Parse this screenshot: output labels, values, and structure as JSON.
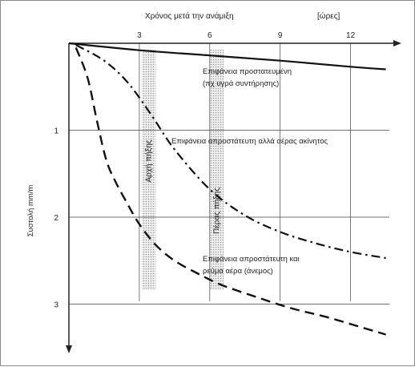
{
  "chart_data": {
    "type": "line",
    "xlabel": "Χρόνος μετά την ανάμιξη",
    "xunit": "[ώρες]",
    "ylabel": "Συστολή mm/m",
    "x_ticks": [
      "3",
      "6",
      "9",
      "12"
    ],
    "y_ticks": [
      "1",
      "2",
      "3"
    ],
    "xlim": [
      0,
      13.5
    ],
    "ylim": [
      0,
      3.5
    ],
    "y_inverted": true,
    "x_axis_position": "top",
    "grid": true,
    "bands": [
      {
        "name": "Αρχή πήξης",
        "x_start": 3.1,
        "x_end": 3.7
      },
      {
        "name": "Πέρας πήξης",
        "x_start": 6.0,
        "x_end": 6.6
      }
    ],
    "series": [
      {
        "name": "Επιφάνεια προστατευμένη (πχ υγρά συντήρησης)",
        "style": "solid",
        "x": [
          0,
          3,
          6,
          9,
          12,
          13.5
        ],
        "y": [
          0,
          0.08,
          0.14,
          0.2,
          0.27,
          0.3
        ]
      },
      {
        "name": "Επιφάνεια απροστάτευτη αλλά αέρας ακίνητος",
        "style": "dash-dot",
        "x": [
          0.3,
          1.5,
          2.5,
          3.5,
          4.5,
          6,
          7.5,
          9,
          10.5,
          12,
          13.5
        ],
        "y": [
          0.02,
          0.2,
          0.45,
          0.82,
          1.22,
          1.68,
          1.98,
          2.17,
          2.3,
          2.4,
          2.47
        ]
      },
      {
        "name": "Επιφάνεια απροστάτευτη και ρεύμα αέρα (άνεμος)",
        "style": "dashed",
        "x": [
          0.3,
          0.8,
          1.2,
          1.6,
          2,
          2.5,
          3,
          3.7,
          4.5,
          5.5,
          6.5,
          8,
          9.5,
          11,
          12.5,
          13.5
        ],
        "y": [
          0.05,
          0.4,
          0.9,
          1.35,
          1.6,
          1.85,
          2.08,
          2.32,
          2.5,
          2.65,
          2.78,
          2.92,
          3.05,
          3.15,
          3.27,
          3.35
        ]
      }
    ],
    "annotations": [
      {
        "line1": "Επιφάνεια προστατευμένη",
        "line2": "(πχ υγρά συντήρησης)"
      },
      {
        "line1": "Επιφάνεια απροστάτευτη αλλά αέρας ακίνητος"
      },
      {
        "line1": "Επιφάνεια απροστάτευτη και",
        "line2": "ρεύμα αέρα (άνεμος)"
      }
    ]
  }
}
